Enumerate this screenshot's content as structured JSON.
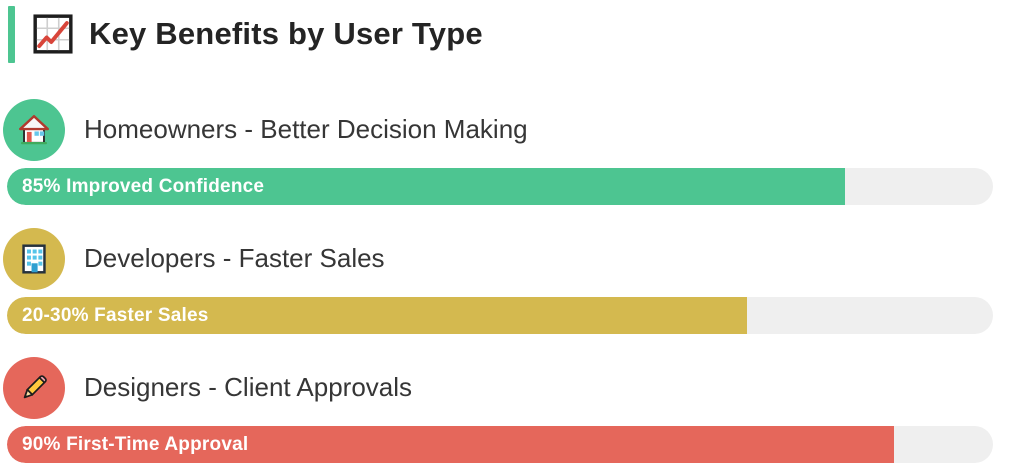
{
  "header": {
    "title": "Key Benefits by User Type",
    "accent_color": "#4DC591",
    "icon": "chart-increasing-icon"
  },
  "track_color": "#EFEFEF",
  "rows": [
    {
      "label": "Homeowners - Better Decision Making",
      "icon": "house-icon",
      "circle_color": "#4DC591",
      "bar_label": "85% Improved Confidence",
      "bar_color": "#4DC591",
      "fill_percent": 85
    },
    {
      "label": "Developers - Faster Sales",
      "icon": "office-building-icon",
      "circle_color": "#D4B94F",
      "bar_label": "20-30% Faster Sales",
      "bar_color": "#D4B94F",
      "fill_percent": 75
    },
    {
      "label": "Designers - Client Approvals",
      "icon": "pencil-icon",
      "circle_color": "#E5675B",
      "bar_label": "90% First-Time Approval",
      "bar_color": "#E5675B",
      "fill_percent": 90
    }
  ],
  "chart_data": {
    "type": "bar",
    "orientation": "horizontal",
    "title": "Key Benefits by User Type",
    "categories": [
      "Homeowners - Better Decision Making",
      "Developers - Faster Sales",
      "Designers - Client Approvals"
    ],
    "values": [
      85,
      75,
      90
    ],
    "bar_labels": [
      "85% Improved Confidence",
      "20-30% Faster Sales",
      "90% First-Time Approval"
    ],
    "bar_colors": [
      "#4DC591",
      "#D4B94F",
      "#E5675B"
    ],
    "xlim": [
      0,
      100
    ],
    "grid": false,
    "legend": false
  }
}
